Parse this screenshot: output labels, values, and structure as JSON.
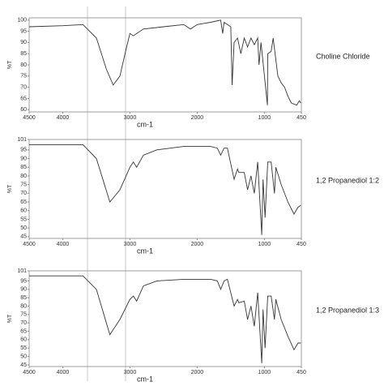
{
  "chart_data": [
    {
      "type": "line",
      "xlabel": "cm-1",
      "ylabel": "%T",
      "xlim": [
        4500,
        450
      ],
      "xticks": [
        4500,
        4000,
        3000,
        2000,
        1000,
        450
      ],
      "ylim": [
        59,
        101
      ],
      "yticks": [
        60,
        65,
        70,
        75,
        80,
        85,
        90,
        95,
        100
      ],
      "x": [
        4500,
        4000,
        3700,
        3500,
        3350,
        3250,
        3150,
        3050,
        3000,
        2950,
        2800,
        2500,
        2200,
        2100,
        2000,
        1800,
        1650,
        1620,
        1600,
        1500,
        1480,
        1450,
        1400,
        1350,
        1300,
        1250,
        1200,
        1150,
        1100,
        1080,
        1050,
        955,
        950,
        900,
        870,
        800,
        750,
        700,
        650,
        600,
        520,
        480,
        460
      ],
      "series": [
        {
          "name": "Choline Chloride",
          "color": "#333333",
          "values": [
            97,
            97.5,
            98,
            92,
            78,
            71,
            75,
            88,
            94,
            93,
            96,
            97,
            98,
            96,
            98,
            99,
            100,
            94,
            99,
            97,
            71,
            90,
            92,
            85,
            92,
            88,
            92,
            89,
            92,
            80,
            90,
            62,
            85,
            86,
            92,
            75,
            72,
            70,
            66,
            63,
            62,
            64,
            63
          ]
        }
      ]
    },
    {
      "type": "line",
      "xlabel": "cm-1",
      "ylabel": "%T",
      "xlim": [
        4500,
        450
      ],
      "xticks": [
        4500,
        4000,
        3000,
        2000,
        1000,
        450
      ],
      "ylim": [
        44,
        101
      ],
      "yticks": [
        45,
        50,
        55,
        60,
        65,
        70,
        75,
        80,
        85,
        90,
        95,
        101
      ],
      "x": [
        4500,
        4000,
        3700,
        3500,
        3300,
        3150,
        3000,
        2950,
        2900,
        2800,
        2600,
        2200,
        1800,
        1700,
        1650,
        1600,
        1550,
        1450,
        1400,
        1380,
        1300,
        1250,
        1200,
        1150,
        1100,
        1040,
        1020,
        990,
        950,
        900,
        850,
        830,
        750,
        650,
        560,
        500,
        460
      ],
      "series": [
        {
          "name": "1,2 Propanediol 1:2",
          "color": "#333333",
          "values": [
            98,
            98,
            98,
            90,
            65,
            72,
            85,
            88,
            85,
            92,
            95,
            97,
            97,
            96,
            92,
            96,
            96,
            78,
            84,
            82,
            82,
            72,
            80,
            70,
            88,
            46,
            78,
            56,
            88,
            88,
            70,
            85,
            75,
            65,
            58,
            62,
            63
          ]
        }
      ]
    },
    {
      "type": "line",
      "xlabel": "cm-1",
      "ylabel": "%T",
      "xlim": [
        4500,
        450
      ],
      "xticks": [
        4500,
        4000,
        3000,
        2000,
        1000,
        450
      ],
      "ylim": [
        44,
        101
      ],
      "yticks": [
        45,
        50,
        55,
        60,
        65,
        70,
        75,
        80,
        85,
        90,
        95,
        101
      ],
      "x": [
        4500,
        4000,
        3700,
        3500,
        3300,
        3150,
        3000,
        2950,
        2900,
        2800,
        2600,
        2200,
        1800,
        1700,
        1650,
        1600,
        1550,
        1450,
        1400,
        1380,
        1300,
        1250,
        1200,
        1150,
        1100,
        1040,
        1020,
        990,
        950,
        900,
        850,
        830,
        750,
        650,
        560,
        500,
        460
      ],
      "series": [
        {
          "name": "1,2 Propanediol 1:3",
          "color": "#333333",
          "values": [
            98,
            98,
            98,
            90,
            63,
            72,
            84,
            86,
            83,
            92,
            95,
            96,
            96,
            95,
            90,
            95,
            96,
            80,
            84,
            82,
            83,
            72,
            80,
            68,
            88,
            46,
            78,
            55,
            86,
            86,
            72,
            84,
            72,
            62,
            54,
            58,
            58
          ]
        }
      ]
    }
  ]
}
